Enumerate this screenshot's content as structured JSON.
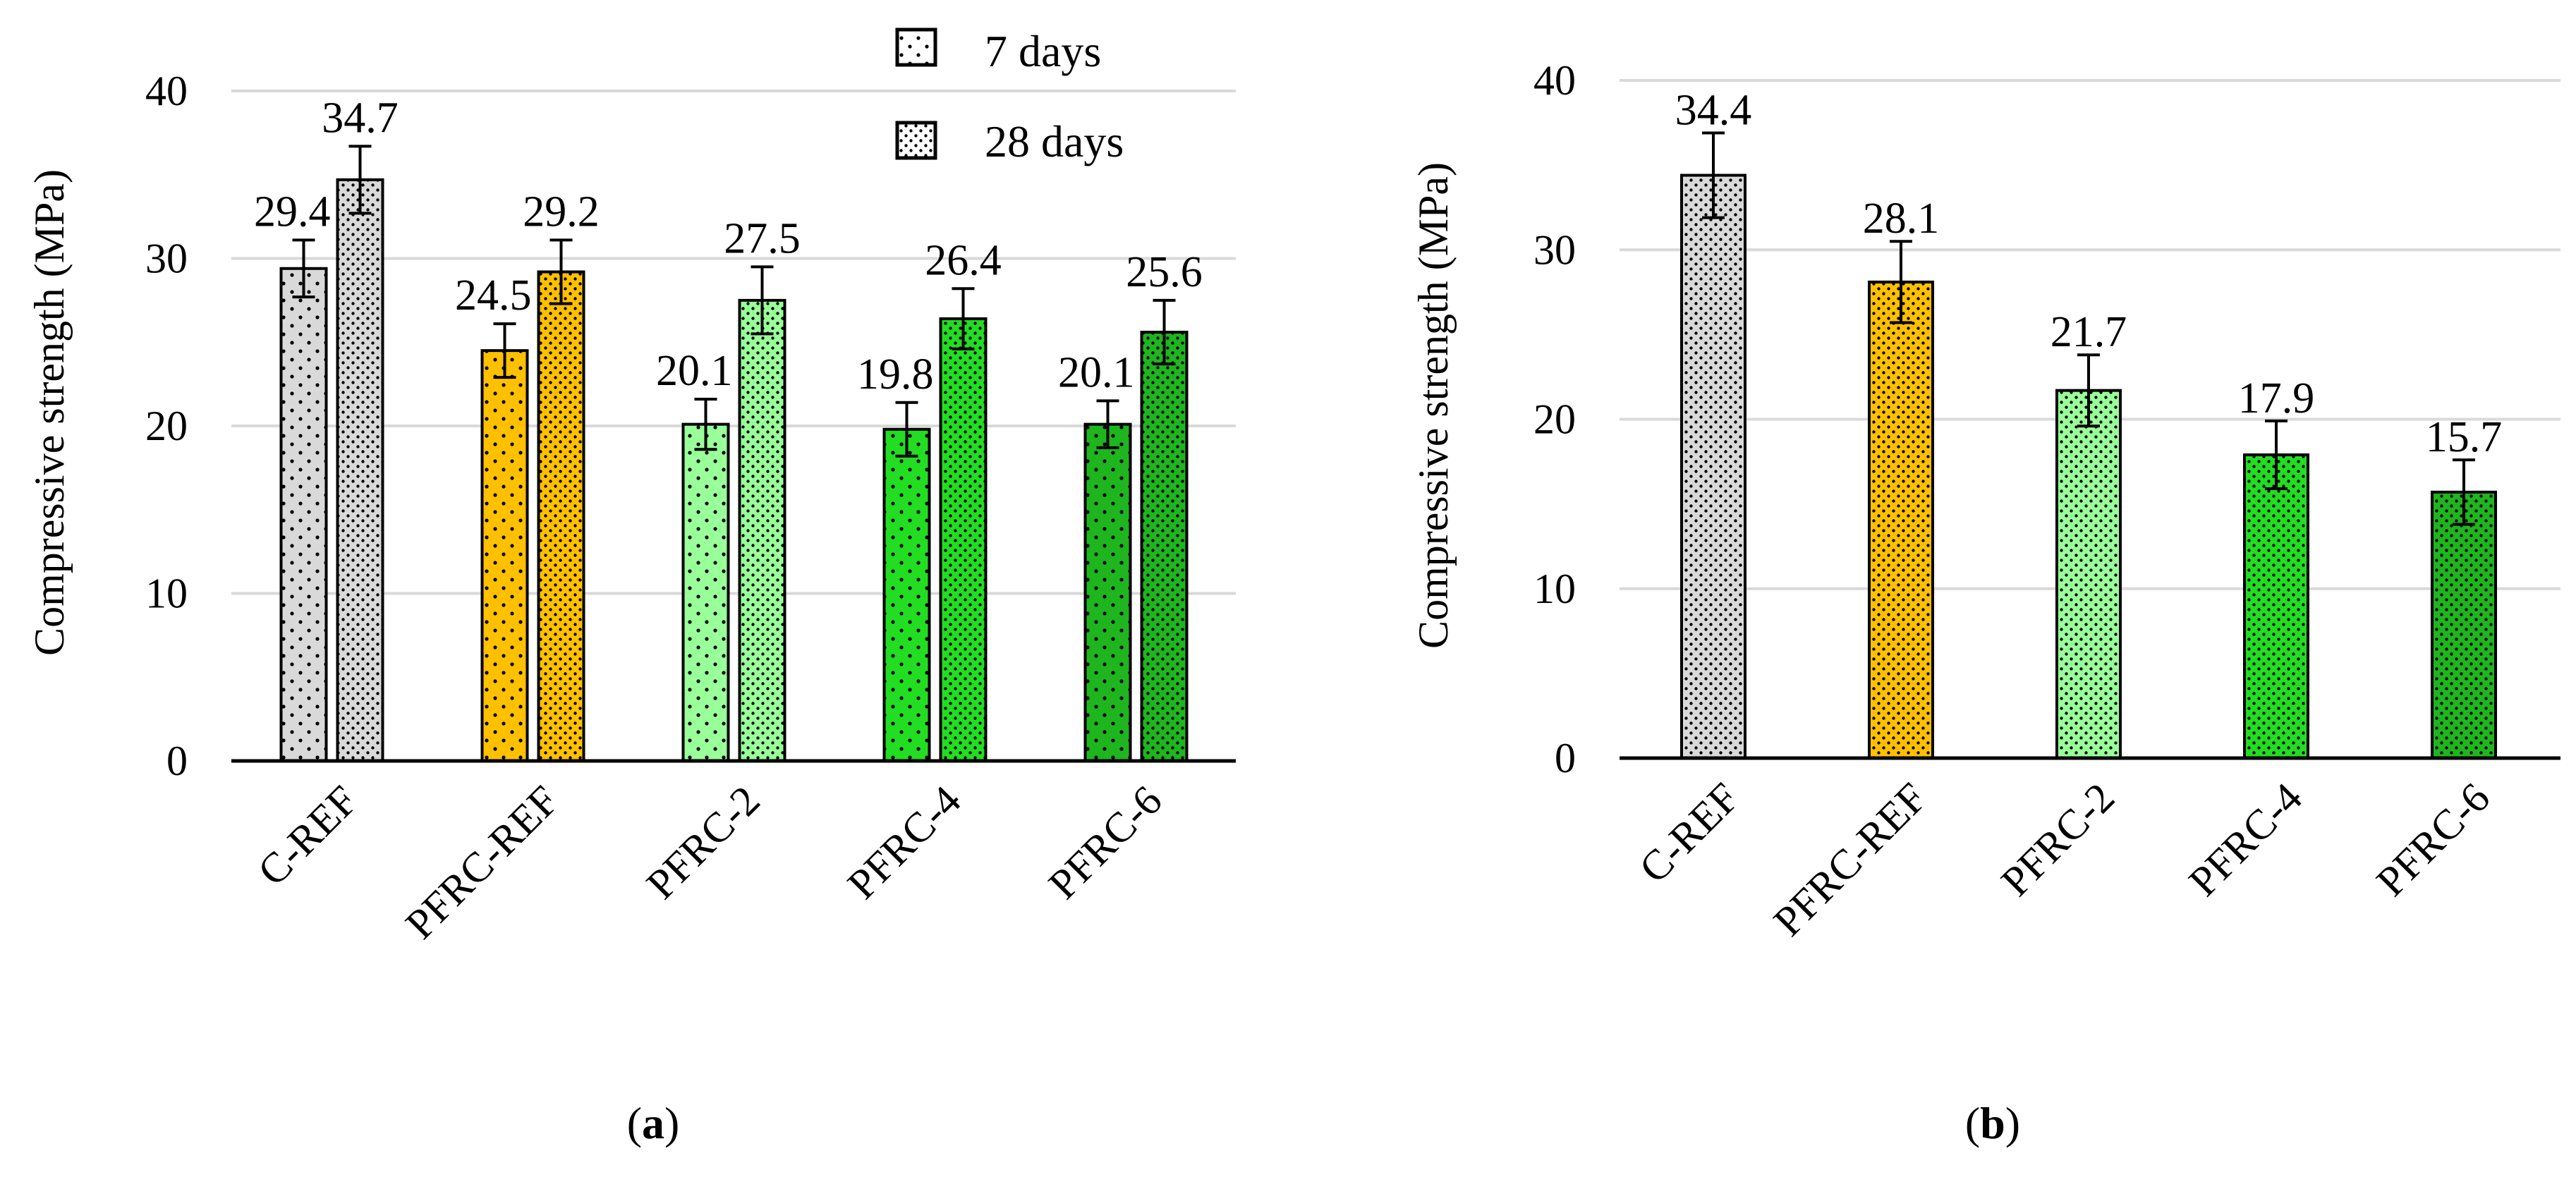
{
  "colors": {
    "c_ref": "#d9d9d9",
    "pfrc_ref": "#ffc000",
    "pfrc_2": "#99ff99",
    "pfrc_4": "#22dd22",
    "pfrc_6": "#1fb51f",
    "grid": "#d9d9d9",
    "axis": "#000000"
  },
  "chart_data": [
    {
      "type": "bar",
      "panel_label": "a",
      "title": "",
      "xlabel": "",
      "ylabel": "Compressive strength (MPa)",
      "ylim": [
        0,
        40
      ],
      "yticks": [
        "0",
        "10",
        "20",
        "30",
        "40"
      ],
      "grid": true,
      "legend_position": "top-right",
      "categories": [
        "C-REF",
        "PFRC-REF",
        "PFRC-2",
        "PFRC-4",
        "PFRC-6"
      ],
      "series": [
        {
          "name": "7 days",
          "pattern": "sparse-dots",
          "values": [
            29.4,
            24.5,
            20.1,
            19.8,
            20.1
          ],
          "labels": [
            "29.4",
            "24.5",
            "20.1",
            "19.8",
            "20.1"
          ],
          "error": [
            1.7,
            1.6,
            1.5,
            1.6,
            1.4
          ]
        },
        {
          "name": "28 days",
          "pattern": "dense-dots",
          "values": [
            34.7,
            29.2,
            27.5,
            26.4,
            25.6
          ],
          "labels": [
            "34.7",
            "29.2",
            "27.5",
            "26.4",
            "25.6"
          ],
          "error": [
            2.0,
            1.9,
            2.0,
            1.8,
            1.9
          ]
        }
      ]
    },
    {
      "type": "bar",
      "panel_label": "b",
      "title": "",
      "xlabel": "",
      "ylabel": "Compressive strength (MPa)",
      "ylim": [
        0,
        40
      ],
      "yticks": [
        "0",
        "10",
        "20",
        "30",
        "40"
      ],
      "grid": true,
      "categories": [
        "C-REF",
        "PFRC-REF",
        "PFRC-2",
        "PFRC-4",
        "PFRC-6"
      ],
      "series": [
        {
          "name": "",
          "pattern": "dense-dots",
          "values": [
            34.4,
            28.1,
            21.7,
            17.9,
            15.7
          ],
          "labels": [
            "34.4",
            "28.1",
            "21.7",
            "17.9",
            "15.7"
          ],
          "error": [
            2.5,
            2.4,
            2.1,
            2.0,
            1.9
          ]
        }
      ]
    }
  ]
}
